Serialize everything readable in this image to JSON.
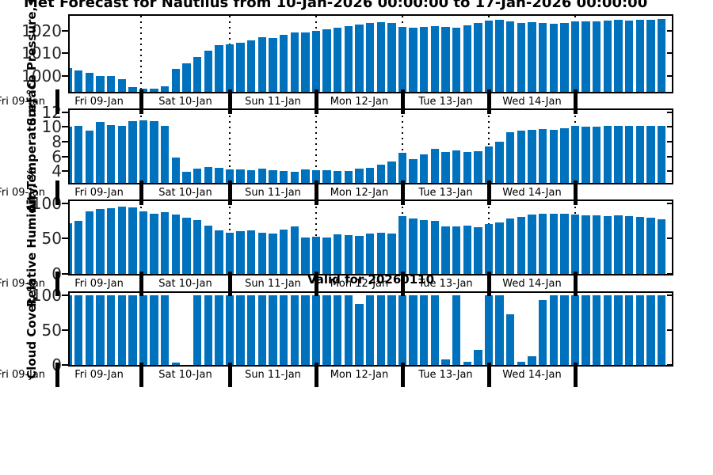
{
  "title": "Met Forecast for Nautilus from 10-Jan-2026 00:00:00 to 17-Jan-2026 00:00:00",
  "annotation": "Valid for 20260110",
  "colors": {
    "bar": "#0072BD",
    "axis": "#000000",
    "tick_text": "#262626"
  },
  "x_axis": {
    "edge_label": "Fri 09-Jan",
    "day_labels": [
      "Fri 09-Jan",
      "Sat 10-Jan",
      "Sun 11-Jan",
      "Mon 12-Jan",
      "Tue 13-Jan",
      "Wed 14-Jan"
    ],
    "interval_hours": 3,
    "first_bar_hour": 3,
    "grid": "dotted-vertical-at-day-boundaries"
  },
  "chart_data": [
    {
      "type": "bar",
      "ylabel": "Surface Pressure, mb",
      "yticks": [
        1000,
        1010,
        1020
      ],
      "ylim": [
        993,
        1026.5
      ],
      "values": [
        1003.5,
        1002.5,
        1001.3,
        1000,
        1000,
        998.5,
        995,
        994.5,
        994.5,
        995.5,
        1003,
        1005.5,
        1008.5,
        1011,
        1013.5,
        1014,
        1014.7,
        1015.8,
        1017.2,
        1016.8,
        1018.2,
        1019.2,
        1019.2,
        1020,
        1020.5,
        1021.2,
        1022,
        1022.6,
        1023.2,
        1023.6,
        1023.4,
        1021.6,
        1021.3,
        1021.6,
        1021.9,
        1021.5,
        1021.4,
        1022.2,
        1023.2,
        1024.4,
        1024.7,
        1023.9,
        1023.5,
        1023.8,
        1023.4,
        1023.1,
        1023.4,
        1023.9,
        1024.1,
        1024.1,
        1024.4,
        1024.6,
        1024.4,
        1024.6,
        1024.9,
        1025.2
      ]
    },
    {
      "type": "bar",
      "ylabel": "Air Temperature, °C",
      "yticks": [
        4,
        6,
        8,
        10,
        12
      ],
      "ylim": [
        2.4,
        12.3
      ],
      "values": [
        10.0,
        10.1,
        9.5,
        10.7,
        10.3,
        10.2,
        10.8,
        10.9,
        10.8,
        10.2,
        5.8,
        3.9,
        4.3,
        4.6,
        4.4,
        4.25,
        4.25,
        4.15,
        4.3,
        4.15,
        4.05,
        3.95,
        4.2,
        4.15,
        4.1,
        4.05,
        4.05,
        4.3,
        4.5,
        4.9,
        5.35,
        6.5,
        5.6,
        6.3,
        7.0,
        6.6,
        6.8,
        6.6,
        6.7,
        7.3,
        8.0,
        9.3,
        9.5,
        9.6,
        9.7,
        9.6,
        9.8,
        10.1,
        10.0,
        10.0,
        10.1,
        10.15,
        10.15,
        10.2,
        10.15,
        10.1
      ]
    },
    {
      "type": "bar",
      "ylabel": "Relative Humidity, %",
      "yticks": [
        0,
        50,
        100
      ],
      "ylim": [
        0,
        103
      ],
      "values": [
        72,
        75,
        89,
        92,
        93,
        95,
        94,
        88,
        85,
        87,
        84,
        79,
        76,
        68,
        62,
        58,
        60,
        62,
        58,
        57,
        63,
        67,
        52,
        53,
        51,
        56,
        55,
        54,
        57,
        58,
        57,
        82,
        78,
        76,
        75,
        67,
        67,
        68,
        66,
        70,
        73,
        78,
        81,
        84,
        85,
        85,
        85,
        84,
        83,
        83,
        82,
        83,
        82,
        81,
        80,
        77
      ]
    },
    {
      "type": "bar",
      "ylabel": "Cloud Cover, %",
      "yticks": [
        0,
        50,
        100
      ],
      "ylim": [
        0,
        103
      ],
      "values": [
        100,
        100,
        100,
        100,
        100,
        100,
        100,
        100,
        100,
        100,
        3,
        0,
        100,
        100,
        100,
        100,
        100,
        100,
        100,
        100,
        100,
        100,
        100,
        100,
        100,
        100,
        100,
        87,
        100,
        100,
        100,
        100,
        100,
        100,
        100,
        8,
        100,
        4,
        22,
        100,
        100,
        73,
        5,
        13,
        93,
        100,
        100,
        100,
        100,
        100,
        100,
        100,
        100,
        100,
        100,
        100
      ]
    }
  ]
}
